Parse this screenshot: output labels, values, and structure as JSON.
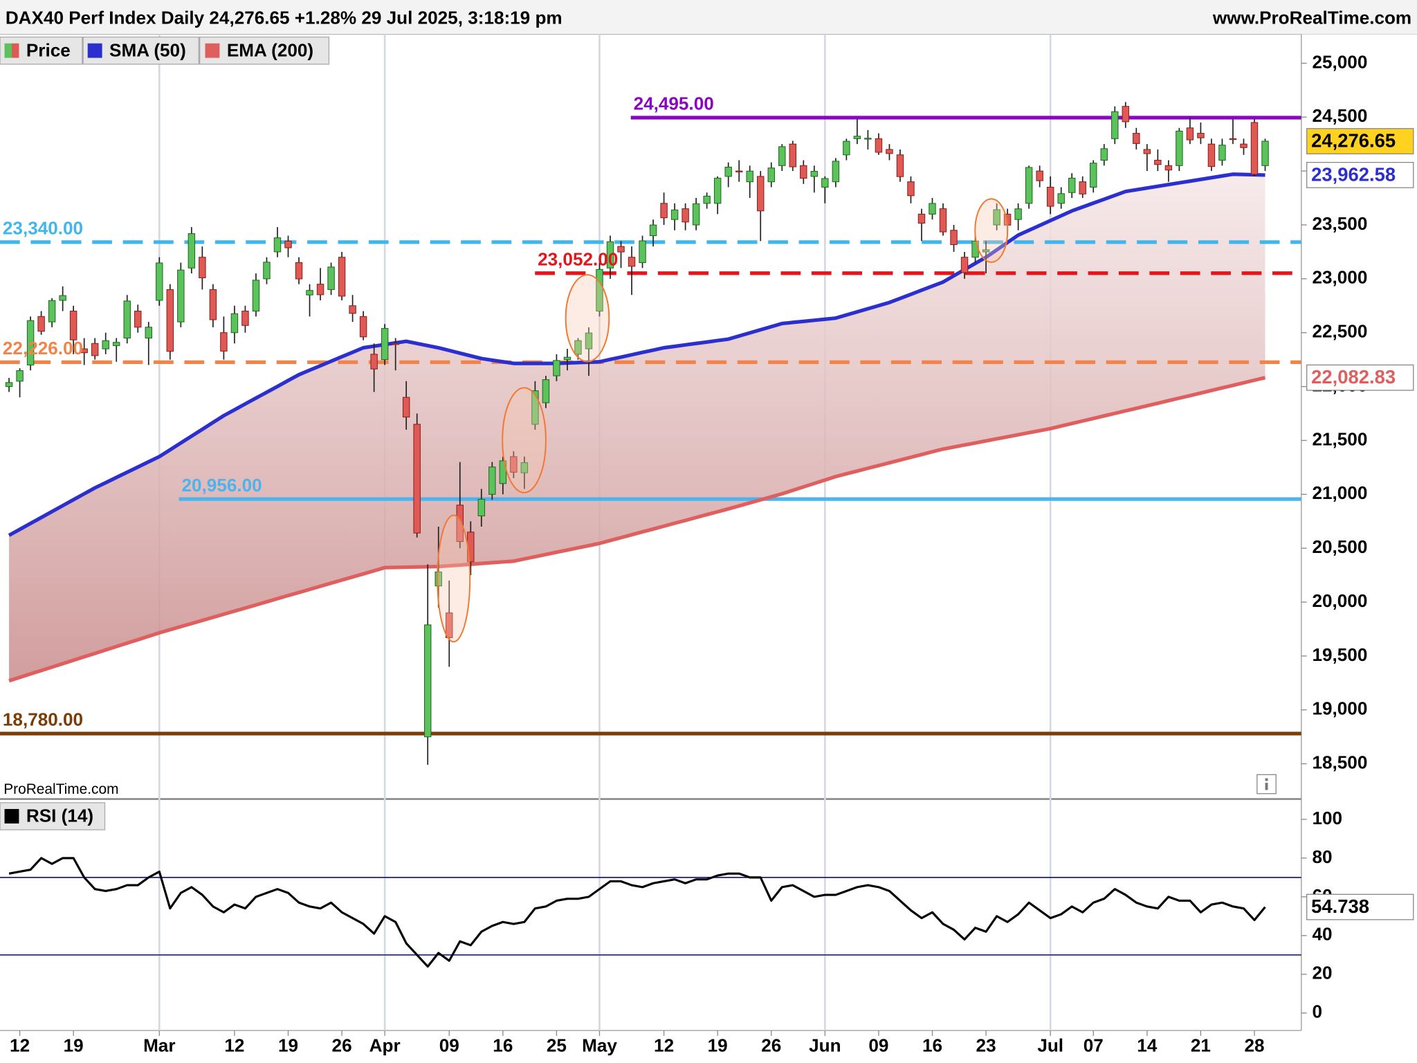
{
  "chart_data": [
    {
      "type": "candlestick",
      "title": "DAX40 Perf Index Daily 24,276.65 +1.28% 29 Jul 2025, 3:18:19 pm",
      "source": "www.ProRealTime.com",
      "watermark": "ProRealTime.com",
      "name": "Price",
      "up_color": "#5cc25c",
      "down_color": "#e05a55",
      "categories": [
        null,
        "12",
        null,
        null,
        null,
        null,
        "19",
        null,
        null,
        null,
        null,
        null,
        null,
        null,
        "Mar",
        null,
        null,
        null,
        null,
        null,
        null,
        "12",
        null,
        null,
        null,
        null,
        "19",
        null,
        null,
        null,
        null,
        "26",
        null,
        null,
        null,
        "Apr",
        null,
        null,
        null,
        null,
        null,
        "09",
        null,
        null,
        null,
        null,
        "16",
        null,
        null,
        null,
        null,
        "25",
        null,
        null,
        null,
        "May",
        null,
        null,
        null,
        null,
        null,
        "12",
        null,
        null,
        null,
        null,
        "19",
        null,
        null,
        null,
        null,
        "26",
        null,
        null,
        null,
        null,
        "Jun",
        null,
        null,
        null,
        null,
        "09",
        null,
        null,
        null,
        null,
        "16",
        null,
        null,
        null,
        null,
        "23",
        null,
        null,
        null,
        null,
        null,
        "Jul",
        null,
        null,
        null,
        "07",
        null,
        null,
        null,
        null,
        "14",
        null,
        null,
        null,
        null,
        "21",
        null,
        null,
        null,
        null,
        "28",
        null
      ],
      "open": [
        22000,
        22050,
        22200,
        22650,
        22600,
        22800,
        22700,
        22350,
        22400,
        22350,
        22380,
        22450,
        22700,
        22450,
        22800,
        22900,
        22600,
        23100,
        23200,
        22900,
        22500,
        22500,
        22700,
        22700,
        23000,
        23250,
        23350,
        23150,
        22850,
        22950,
        22900,
        23200,
        22750,
        22650,
        22300,
        22250,
        22400,
        21900,
        21650,
        18750,
        20150,
        19900,
        20900,
        20650,
        20800,
        21000,
        21100,
        21350,
        21200,
        21650,
        21850,
        22100,
        22250,
        22300,
        22350,
        22700,
        23100,
        23300,
        23200,
        23150,
        23400,
        23700,
        23550,
        23650,
        23500,
        23700,
        23700,
        23950,
        24000,
        23900,
        23950,
        23900,
        24050,
        24250,
        24050,
        23950,
        23850,
        23900,
        24150,
        24300,
        24300,
        24300,
        24200,
        24150,
        23900,
        23600,
        23600,
        23650,
        23450,
        23200,
        23200,
        23250,
        23500,
        23600,
        23550,
        23700,
        24000,
        23850,
        23700,
        23800,
        23900,
        23850,
        24100,
        24300,
        24600,
        24350,
        24200,
        24100,
        24050,
        24050,
        24400,
        24350,
        24250,
        24100,
        24300,
        24250,
        24450,
        24050
      ],
      "high": [
        22080,
        22170,
        22650,
        22700,
        22820,
        22930,
        22750,
        22450,
        22450,
        22500,
        22450,
        22850,
        22760,
        22600,
        23200,
        22950,
        23150,
        23480,
        23300,
        22950,
        22650,
        22750,
        22750,
        23050,
        23200,
        23480,
        23400,
        23200,
        22950,
        23100,
        23150,
        23250,
        22850,
        22700,
        22400,
        22580,
        22450,
        22050,
        21750,
        20350,
        20700,
        20200,
        21300,
        20750,
        21050,
        21300,
        21350,
        21400,
        21350,
        22050,
        22100,
        22300,
        22350,
        22450,
        22550,
        23150,
        23400,
        23350,
        23300,
        23400,
        23550,
        23800,
        23700,
        23700,
        23750,
        23800,
        23950,
        24080,
        24100,
        24050,
        24000,
        24080,
        24250,
        24280,
        24100,
        24050,
        23950,
        24120,
        24300,
        24480,
        24380,
        24350,
        24250,
        24200,
        23950,
        23650,
        23750,
        23700,
        23500,
        23250,
        23400,
        23350,
        23700,
        23650,
        23700,
        24050,
        24050,
        23950,
        23850,
        23980,
        23950,
        24100,
        24250,
        24600,
        24640,
        24400,
        24250,
        24200,
        24100,
        24400,
        24500,
        24450,
        24300,
        24300,
        24480,
        24300,
        24480,
        24300
      ],
      "low": [
        21950,
        21900,
        22150,
        22480,
        22550,
        22700,
        22300,
        22200,
        22250,
        22300,
        22230,
        22400,
        22500,
        22200,
        22750,
        22250,
        22550,
        23050,
        22900,
        22550,
        22250,
        22400,
        22500,
        22650,
        22950,
        23200,
        23200,
        22950,
        22650,
        22800,
        22850,
        22800,
        22600,
        22430,
        21950,
        22200,
        22150,
        21600,
        20600,
        18490,
        19950,
        19400,
        20500,
        20250,
        20700,
        20950,
        21000,
        21150,
        21050,
        21600,
        21800,
        22050,
        22150,
        22250,
        22100,
        22650,
        23000,
        23100,
        22850,
        23100,
        23300,
        23500,
        23450,
        23450,
        23450,
        23650,
        23600,
        23850,
        23900,
        23750,
        23350,
        23850,
        24000,
        24000,
        23880,
        23800,
        23700,
        23850,
        24100,
        24250,
        24200,
        24150,
        24100,
        23900,
        23700,
        23350,
        23550,
        23400,
        23250,
        23000,
        23150,
        23050,
        23450,
        23400,
        23450,
        23650,
        23850,
        23600,
        23650,
        23750,
        23750,
        23800,
        24050,
        24250,
        24400,
        24200,
        24000,
        24000,
        23900,
        24000,
        24250,
        24250,
        24000,
        24050,
        24250,
        24150,
        23950,
        24000
      ],
      "close": [
        22037,
        22148,
        22612,
        22513,
        22798,
        22844,
        22433,
        22314,
        22287,
        22426,
        22410,
        22794,
        22551,
        22551,
        23147,
        22327,
        23081,
        23419,
        23009,
        22620,
        22329,
        22676,
        22567,
        22987,
        23154,
        23380,
        23288,
        22999,
        22892,
        22852,
        23109,
        22839,
        22679,
        22461,
        22163,
        22539,
        22390,
        21717,
        20641,
        19789,
        20280,
        19670,
        20562,
        20374,
        20954,
        21254,
        21311,
        21205,
        21294,
        21961,
        22064,
        22242,
        22272,
        22426,
        22497,
        23087,
        23344,
        23249,
        23116,
        23352,
        23499,
        23566,
        23639,
        23527,
        23696,
        23767,
        23934,
        24036,
        23999,
        23999,
        23630,
        24028,
        24226,
        24039,
        23933,
        23997,
        23930,
        24091,
        24276,
        24323,
        24304,
        24174,
        24162,
        23948,
        23771,
        23516,
        23699,
        23435,
        23317,
        23057,
        23350,
        23269,
        23641,
        23498,
        23649,
        24033,
        23910,
        23673,
        23790,
        23934,
        23787,
        24073,
        24207,
        24550,
        24457,
        24255,
        24161,
        24060,
        24009,
        24370,
        24289,
        24308,
        24042,
        24240,
        24296,
        24217,
        23970,
        24276.65
      ],
      "series": [
        {
          "name": "SMA (50)",
          "color": "#2b2fcf",
          "values": [
            20620,
            20675,
            20730,
            20785,
            20840,
            20895,
            20950,
            21005,
            21060,
            21108,
            21157,
            21205,
            21253,
            21302,
            21350,
            21413,
            21477,
            21540,
            21603,
            21667,
            21730,
            21784,
            21839,
            21893,
            21947,
            22001,
            22056,
            22110,
            22152,
            22193,
            22235,
            22277,
            22318,
            22360,
            22375,
            22390,
            22405,
            22420,
            22400,
            22380,
            22360,
            22335,
            22310,
            22285,
            22260,
            22245,
            22230,
            22215,
            22215,
            22215,
            22215,
            22215,
            22219,
            22223,
            22226,
            22230,
            22252,
            22273,
            22295,
            22317,
            22338,
            22360,
            22373,
            22387,
            22400,
            22413,
            22427,
            22440,
            22469,
            22498,
            22527,
            22556,
            22585,
            22595,
            22605,
            22615,
            22625,
            22635,
            22664,
            22693,
            22722,
            22751,
            22780,
            22818,
            22856,
            22894,
            22932,
            22970,
            23028,
            23085,
            23143,
            23200,
            23268,
            23337,
            23405,
            23450,
            23495,
            23540,
            23585,
            23630,
            23666,
            23702,
            23738,
            23774,
            23810,
            23826,
            23842,
            23858,
            23874,
            23890,
            23906,
            23922,
            23938,
            23954,
            23970,
            23968,
            23965,
            23962.58
          ]
        },
        {
          "name": "EMA (200)",
          "color": "#df5f5f",
          "values": [
            19270,
            19302,
            19334,
            19365,
            19397,
            19429,
            19461,
            19493,
            19524,
            19556,
            19588,
            19620,
            19651,
            19683,
            19715,
            19744,
            19773,
            19801,
            19830,
            19859,
            19888,
            19917,
            19945,
            19974,
            20003,
            20032,
            20061,
            20089,
            20118,
            20147,
            20176,
            20205,
            20233,
            20262,
            20291,
            20320,
            20322,
            20324,
            20326,
            20328,
            20330,
            20337,
            20344,
            20351,
            20359,
            20366,
            20373,
            20380,
            20401,
            20421,
            20442,
            20463,
            20483,
            20504,
            20524,
            20545,
            20572,
            20598,
            20625,
            20652,
            20678,
            20705,
            20732,
            20758,
            20785,
            20812,
            20838,
            20865,
            20893,
            20921,
            20949,
            20977,
            21005,
            21037,
            21069,
            21101,
            21133,
            21165,
            21191,
            21216,
            21242,
            21267,
            21293,
            21318,
            21344,
            21369,
            21395,
            21420,
            21439,
            21458,
            21477,
            21496,
            21515,
            21534,
            21553,
            21572,
            21591,
            21610,
            21634,
            21657,
            21681,
            21704,
            21728,
            21751,
            21775,
            21798,
            21822,
            21845,
            21869,
            21893,
            21916,
            21940,
            21964,
            21988,
            22011,
            22035,
            22059,
            22082.83
          ]
        }
      ],
      "levels": [
        {
          "value": 24495,
          "label": "24,495.00",
          "color": "#8a05c0",
          "style": "solid"
        },
        {
          "value": 23340,
          "label": "23,340.00",
          "color": "#3fb6ee",
          "style": "dashed"
        },
        {
          "value": 23052,
          "label": "23,052.00",
          "color": "#e3161b",
          "style": "dashed"
        },
        {
          "value": 22226,
          "label": "22,226.00",
          "color": "#f2844a",
          "style": "dashed"
        },
        {
          "value": 20956,
          "label": "20,956.00",
          "color": "#4db3ec",
          "style": "solid"
        },
        {
          "value": 18780,
          "label": "18,780.00",
          "color": "#7b3c05",
          "style": "solid"
        }
      ],
      "markers": [
        {
          "value": 24276.65,
          "label": "24,276.65",
          "color": "#000000",
          "background": "#ffd21f"
        },
        {
          "value": 23962.58,
          "label": "23,962.58",
          "color": "#2b2fcf",
          "background": "#ffffff"
        },
        {
          "value": 22082.83,
          "label": "22,082.83",
          "color": "#df5f5f",
          "background": "#ffffff"
        }
      ],
      "ylim": [
        18181,
        25268
      ],
      "yticks": [
        {
          "value": 18500,
          "label": "18,500"
        },
        {
          "value": 19000,
          "label": "19,000"
        },
        {
          "value": 19500,
          "label": "19,500"
        },
        {
          "value": 20000,
          "label": "20,000"
        },
        {
          "value": 20500,
          "label": "20,500"
        },
        {
          "value": 21000,
          "label": "21,000"
        },
        {
          "value": 21500,
          "label": "21,500"
        },
        {
          "value": 22000,
          "label": "22,000"
        },
        {
          "value": 22500,
          "label": "22,500"
        },
        {
          "value": 23000,
          "label": "23,000"
        },
        {
          "value": 23500,
          "label": "23,500"
        },
        {
          "value": 24000,
          "label": "24,000"
        },
        {
          "value": 24500,
          "label": "24,500"
        },
        {
          "value": 25000,
          "label": "25,000"
        }
      ]
    },
    {
      "type": "line",
      "series": [
        {
          "name": "RSI (14)",
          "color": "#000000",
          "values": [
            72,
            73,
            74,
            80,
            77,
            80,
            80,
            70,
            64,
            63,
            64,
            66,
            66,
            70,
            73,
            54,
            62,
            65,
            61,
            55,
            52,
            56,
            54,
            60,
            62,
            64,
            62,
            57,
            55,
            54,
            57,
            52,
            49,
            46,
            41,
            50,
            47,
            36,
            30,
            24,
            31,
            27,
            37,
            35,
            42,
            45,
            47,
            46,
            47,
            54,
            55,
            58,
            59,
            59,
            60,
            64,
            68,
            68,
            66,
            65,
            67,
            68,
            69,
            67,
            69,
            69,
            71,
            72,
            72,
            70,
            70,
            58,
            65,
            66,
            63,
            60,
            61,
            61,
            63,
            65,
            66,
            65,
            63,
            58,
            53,
            49,
            52,
            46,
            43,
            38,
            44,
            42,
            50,
            47,
            51,
            57,
            53,
            49,
            51,
            55,
            52,
            57,
            59,
            64,
            61,
            57,
            55,
            54,
            60,
            58,
            58,
            52,
            56,
            57,
            55,
            54,
            48,
            54.738
          ]
        }
      ],
      "levels": [
        {
          "value": 70,
          "color": "#1c1c8c"
        },
        {
          "value": 30,
          "color": "#1c1c8c"
        }
      ],
      "markers": [
        {
          "value": 54.738,
          "label": "54.738",
          "color": "#000000",
          "background": "#ffffff"
        }
      ],
      "ylim": [
        -9,
        110
      ],
      "yticks": [
        0,
        20,
        40,
        60,
        80,
        100
      ]
    }
  ]
}
